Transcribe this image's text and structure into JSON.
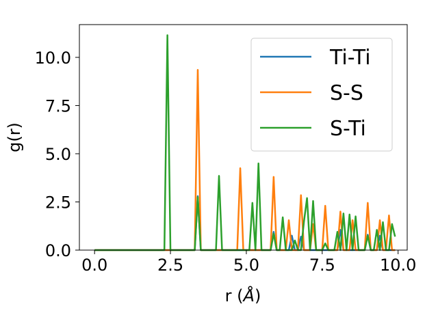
{
  "chart_data": {
    "type": "line",
    "xlabel": "r (",
    "xlabel_unit": "Å",
    "xlabel_close": ")",
    "ylabel": "g(r)",
    "xlim": [
      -0.5,
      10.3
    ],
    "ylim": [
      0,
      11.7
    ],
    "xticks": [
      0.0,
      2.5,
      5.0,
      7.5,
      10.0
    ],
    "xtick_labels": [
      "0.0",
      "2.5",
      "5.0",
      "7.5",
      "10.0"
    ],
    "yticks": [
      0.0,
      2.5,
      5.0,
      7.5,
      10.0
    ],
    "ytick_labels": [
      "0.0",
      "2.5",
      "5.0",
      "7.5",
      "10.0"
    ],
    "legend_position": "top-right",
    "grid": false,
    "series": [
      {
        "name": "Ti-Ti",
        "color": "#1f77b4",
        "x": [
          0.0,
          3.3,
          3.4,
          3.5,
          5.8,
          5.9,
          6.0,
          6.4,
          6.5,
          6.6,
          6.7,
          6.8,
          6.9,
          8.0,
          8.1,
          8.2,
          8.9,
          9.0,
          9.1,
          9.3,
          9.4,
          9.5,
          9.9
        ],
        "y": [
          0.0,
          0.0,
          2.8,
          0.0,
          0.0,
          0.95,
          0.0,
          0.0,
          0.75,
          0.0,
          0.0,
          0.7,
          0.0,
          0.0,
          1.05,
          0.0,
          0.0,
          0.8,
          0.0,
          0.0,
          0.75,
          0.0,
          0.0
        ]
      },
      {
        "name": "S-S",
        "color": "#ff7f0e",
        "x": [
          0.0,
          3.3,
          3.4,
          3.5,
          4.7,
          4.8,
          4.9,
          5.8,
          5.9,
          6.0,
          6.3,
          6.4,
          6.5,
          6.7,
          6.8,
          6.9,
          7.1,
          7.2,
          7.3,
          7.5,
          7.6,
          7.7,
          8.0,
          8.1,
          8.2,
          8.4,
          8.5,
          8.6,
          8.9,
          9.0,
          9.1,
          9.3,
          9.4,
          9.5,
          9.6,
          9.7,
          9.8,
          9.9
        ],
        "y": [
          0.0,
          0.0,
          9.35,
          0.0,
          0.0,
          4.25,
          0.0,
          0.0,
          3.8,
          0.0,
          0.0,
          1.55,
          0.0,
          0.0,
          2.85,
          0.0,
          0.0,
          1.35,
          0.0,
          0.0,
          2.3,
          0.0,
          0.0,
          2.0,
          0.0,
          0.0,
          1.55,
          0.0,
          0.0,
          2.45,
          0.0,
          0.0,
          1.55,
          0.0,
          0.0,
          1.8,
          0.0,
          0.0
        ]
      },
      {
        "name": "S-Ti",
        "color": "#2ca02c",
        "x": [
          0.0,
          2.3,
          2.4,
          2.5,
          3.3,
          3.4,
          3.5,
          4.0,
          4.1,
          4.2,
          5.1,
          5.2,
          5.3,
          5.4,
          5.5,
          5.8,
          5.9,
          6.0,
          6.1,
          6.2,
          6.3,
          6.5,
          6.6,
          6.7,
          6.8,
          6.9,
          7.0,
          7.1,
          7.2,
          7.3,
          7.5,
          7.6,
          7.7,
          7.9,
          8.0,
          8.1,
          8.2,
          8.3,
          8.4,
          8.5,
          8.6,
          8.7,
          8.9,
          9.0,
          9.1,
          9.2,
          9.3,
          9.4,
          9.5,
          9.6,
          9.7,
          9.8,
          9.9
        ],
        "y": [
          0.0,
          0.0,
          11.15,
          0.0,
          0.0,
          2.75,
          0.0,
          0.0,
          3.85,
          0.0,
          0.0,
          2.45,
          0.0,
          4.5,
          0.0,
          0.0,
          0.85,
          0.0,
          0.0,
          1.7,
          0.0,
          0.0,
          0.5,
          0.0,
          0.0,
          1.5,
          2.7,
          0.0,
          2.55,
          0.0,
          0.0,
          0.35,
          0.0,
          0.0,
          0.95,
          0.0,
          1.9,
          0.0,
          1.85,
          0.0,
          1.75,
          0.0,
          0.0,
          0.75,
          0.0,
          0.0,
          1.05,
          0.0,
          1.45,
          0.0,
          0.0,
          1.35,
          0.7
        ]
      }
    ]
  }
}
